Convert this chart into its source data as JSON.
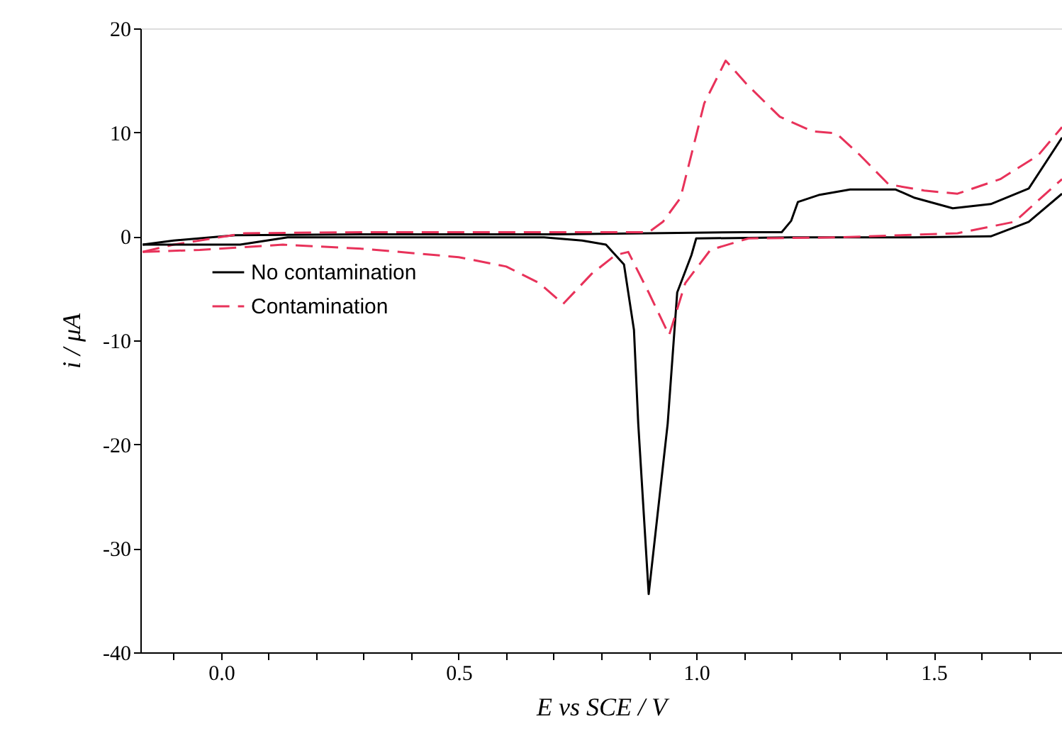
{
  "chart_data": {
    "type": "line",
    "xlabel": "E vs SCE / V",
    "ylabel": "i / μA",
    "xlim": [
      -0.17,
      1.77
    ],
    "ylim": [
      -40,
      20
    ],
    "xticks": [
      {
        "value": -0.1,
        "label": null
      },
      {
        "value": 0.0,
        "label": "0.0"
      },
      {
        "value": 0.1,
        "label": null
      },
      {
        "value": 0.2,
        "label": null
      },
      {
        "value": 0.3,
        "label": null
      },
      {
        "value": 0.4,
        "label": null
      },
      {
        "value": 0.5,
        "label": "0.5"
      },
      {
        "value": 0.6,
        "label": null
      },
      {
        "value": 0.7,
        "label": null
      },
      {
        "value": 0.8,
        "label": null
      },
      {
        "value": 0.9,
        "label": null
      },
      {
        "value": 1.0,
        "label": "1.0"
      },
      {
        "value": 1.1,
        "label": null
      },
      {
        "value": 1.2,
        "label": null
      },
      {
        "value": 1.3,
        "label": null
      },
      {
        "value": 1.4,
        "label": null
      },
      {
        "value": 1.5,
        "label": "1.5"
      },
      {
        "value": 1.6,
        "label": null
      },
      {
        "value": 1.7,
        "label": null
      }
    ],
    "yticks": [
      -40,
      -30,
      -20,
      -10,
      0,
      10,
      20
    ],
    "grid": false,
    "legend": "left",
    "marker": "none",
    "series": [
      {
        "name": "No contamination",
        "color": "#000000",
        "line_style": "solid",
        "x": [
          -0.165,
          -0.1,
          0.03,
          0.3,
          0.7,
          0.9,
          1.1,
          1.18,
          1.2,
          1.214,
          1.26,
          1.324,
          1.42,
          1.46,
          1.54,
          1.62,
          1.7,
          1.77
        ],
        "values": [
          -0.8,
          -0.4,
          0.1,
          0.2,
          0.2,
          0.3,
          0.4,
          0.4,
          1.5,
          3.3,
          4.0,
          4.5,
          4.5,
          3.7,
          2.7,
          3.1,
          4.6,
          9.5
        ]
      },
      {
        "color": "#000000",
        "line_style": "solid",
        "x": [
          -0.165,
          -0.1,
          0.04,
          0.14,
          0.4,
          0.68,
          0.76,
          0.81,
          0.848,
          0.869,
          0.878,
          0.9,
          0.94,
          0.96,
          0.99,
          1.0,
          1.2,
          1.46,
          1.62,
          1.7,
          1.77
        ],
        "values": [
          -0.8,
          -0.8,
          -0.8,
          -0.1,
          -0.1,
          -0.1,
          -0.4,
          -0.8,
          -2.7,
          -9,
          -18,
          -34.4,
          -18,
          -5.4,
          -1.8,
          -0.2,
          -0.1,
          -0.1,
          0.0,
          1.4,
          4.1
        ]
      },
      {
        "name": "Contamination",
        "color": "#e8325a",
        "line_style": "dashed",
        "x": [
          -0.165,
          -0.1,
          0.05,
          0.3,
          0.6,
          0.9,
          0.93,
          0.967,
          1.017,
          1.062,
          1.107,
          1.176,
          1.245,
          1.295,
          1.345,
          1.405,
          1.48,
          1.55,
          1.64,
          1.72,
          1.77
        ],
        "values": [
          -1.5,
          -0.8,
          0.3,
          0.4,
          0.4,
          0.4,
          1.4,
          3.7,
          12.8,
          16.9,
          14.6,
          11.5,
          10.1,
          9.9,
          7.8,
          5.0,
          4.4,
          4.1,
          5.5,
          7.8,
          10.5
        ]
      },
      {
        "color": "#e8325a",
        "line_style": "dashed",
        "x": [
          -0.165,
          -0.045,
          0.13,
          0.3,
          0.5,
          0.6,
          0.67,
          0.72,
          0.78,
          0.83,
          0.857,
          0.9,
          0.943,
          0.977,
          1.03,
          1.11,
          1.3,
          1.55,
          1.67,
          1.77
        ],
        "values": [
          -1.5,
          -1.3,
          -0.8,
          -1.2,
          -2.0,
          -2.9,
          -4.5,
          -6.5,
          -3.6,
          -1.8,
          -1.5,
          -5.4,
          -9.5,
          -4.5,
          -1.3,
          -0.2,
          -0.1,
          0.3,
          1.4,
          5.5
        ]
      }
    ]
  }
}
